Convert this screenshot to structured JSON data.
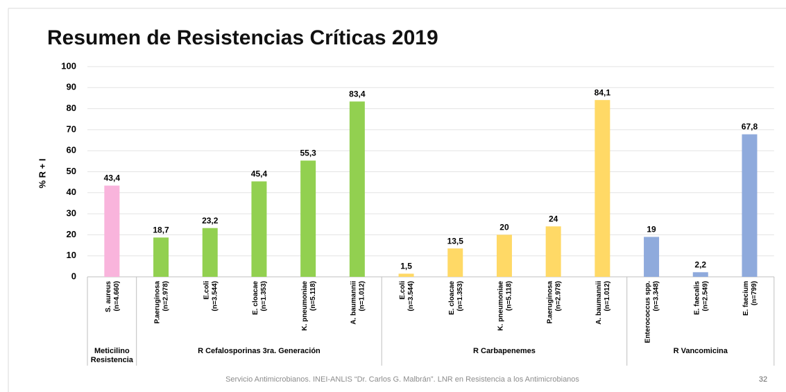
{
  "chart_data": {
    "type": "bar",
    "title": "Resumen de Resistencias Críticas 2019",
    "ylabel": "% R + I",
    "ylim": [
      0,
      100
    ],
    "yticks": [
      0,
      10,
      20,
      30,
      40,
      50,
      60,
      70,
      80,
      90,
      100
    ],
    "grid": true,
    "groups": [
      {
        "label": "Meticilino Resistencia",
        "color": "#f9b4dc",
        "categories": [
          "S. aureus"
        ],
        "notes": [
          "(n=4.660)"
        ],
        "values": [
          43.4
        ],
        "value_labels": [
          "43,4"
        ]
      },
      {
        "label": "R Cefalosporinas 3ra. Generación",
        "color": "#92d050",
        "categories": [
          "P.aeruginosa",
          "E.coli",
          "E. cloacae",
          "K. pneumoniae",
          "A. baumannii"
        ],
        "notes": [
          "(n=2.978)",
          "(n=3.544)",
          "(n=1.353)",
          "(n=5.118)",
          "(n=1.012)"
        ],
        "values": [
          18.7,
          23.2,
          45.4,
          55.3,
          83.4
        ],
        "value_labels": [
          "18,7",
          "23,2",
          "45,4",
          "55,3",
          "83,4"
        ]
      },
      {
        "label": "R Carbapenemes",
        "color": "#ffd966",
        "categories": [
          "E.coli",
          "E. cloacae",
          "K. pneumoniae",
          "P.aeruginosa",
          "A. baumannii"
        ],
        "notes": [
          "(n=3.544)",
          "(n=1.353)",
          "(n=5.118)",
          "(n=2.978)",
          "(n=1.012)"
        ],
        "values": [
          1.5,
          13.5,
          20,
          24,
          84.1
        ],
        "value_labels": [
          "1,5",
          "13,5",
          "20",
          "24",
          "84,1"
        ]
      },
      {
        "label": "R Vancomicina",
        "color": "#8faadc",
        "categories": [
          "Enterococcus spp.",
          "E. faecalis",
          "E. faecium"
        ],
        "notes": [
          "(n=3.348)",
          "(n=2.549)",
          "(n=799)"
        ],
        "values": [
          19,
          2.2,
          67.8
        ],
        "value_labels": [
          "19",
          "2,2",
          "67,8"
        ]
      }
    ]
  },
  "footer": "Servicio Antimicrobianos. INEI-ANLIS “Dr. Carlos G. Malbrán”. LNR en Resistencia a los Antimicrobianos",
  "page_number": 32
}
